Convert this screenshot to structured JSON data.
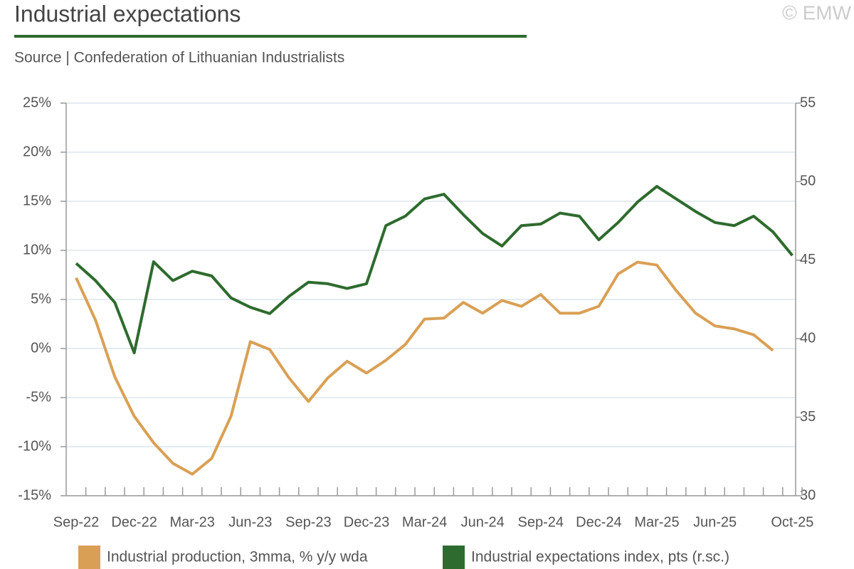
{
  "chart_data": {
    "type": "line",
    "title": "Industrial expectations",
    "subtitle": "Source | Confederation of Lithuanian Industrialists",
    "copyright": "© EMW",
    "categories": [
      "Sep-22",
      null,
      null,
      "Dec-22",
      null,
      null,
      "Mar-23",
      null,
      null,
      "Jun-23",
      null,
      null,
      "Sep-23",
      null,
      null,
      "Dec-23",
      null,
      null,
      "Mar-24",
      null,
      null,
      "Jun-24",
      null,
      null,
      "Sep-24",
      null,
      null,
      "Dec-24",
      null,
      null,
      "Mar-25",
      null,
      null,
      "Jun-25",
      null,
      null,
      null,
      "Oct-25"
    ],
    "series": [
      {
        "name": "Industrial production, 3mma, % y/y wda",
        "color": "#d9a055",
        "values": [
          7.2,
          2.9,
          -2.9,
          -6.9,
          -9.6,
          -11.7,
          -12.8,
          -11.2,
          -6.9,
          0.7,
          -0.1,
          -3.0,
          -5.4,
          -3.0,
          -1.3,
          -2.5,
          -1.2,
          0.4,
          3.0,
          3.1,
          4.7,
          3.6,
          4.9,
          4.3,
          5.5,
          3.6,
          3.6,
          4.3,
          7.6,
          8.8,
          8.5,
          5.9,
          3.6,
          2.3,
          2.0,
          1.4,
          -0.2,
          null
        ]
      },
      {
        "name": "Industrial expectations index, pts (r.sc.)",
        "color": "#2e6b2e",
        "axis": "y2",
        "values": [
          44.8,
          43.7,
          42.3,
          39.1,
          44.9,
          43.7,
          44.3,
          44.0,
          42.6,
          42.0,
          41.6,
          42.7,
          43.6,
          43.5,
          43.2,
          43.5,
          47.2,
          47.8,
          48.9,
          49.2,
          47.9,
          46.7,
          45.9,
          47.2,
          47.3,
          48.0,
          47.8,
          46.3,
          47.4,
          48.7,
          49.7,
          48.9,
          48.1,
          47.4,
          47.2,
          47.8,
          46.8,
          45.3
        ]
      }
    ],
    "ylim": [
      -15,
      25
    ],
    "yticks": [
      {
        "value": -15,
        "label": "-15%"
      },
      {
        "value": -10,
        "label": "-10%"
      },
      {
        "value": -5,
        "label": "-5%"
      },
      {
        "value": 0,
        "label": "0%"
      },
      {
        "value": 5,
        "label": "5%"
      },
      {
        "value": 10,
        "label": "10%"
      },
      {
        "value": 15,
        "label": "15%"
      },
      {
        "value": 20,
        "label": "20%"
      },
      {
        "value": 25,
        "label": "25%"
      }
    ],
    "y2lim": [
      30,
      55
    ],
    "y2ticks": [
      30,
      35,
      40,
      45,
      50,
      55
    ],
    "grid": true,
    "legend": "bottom"
  }
}
